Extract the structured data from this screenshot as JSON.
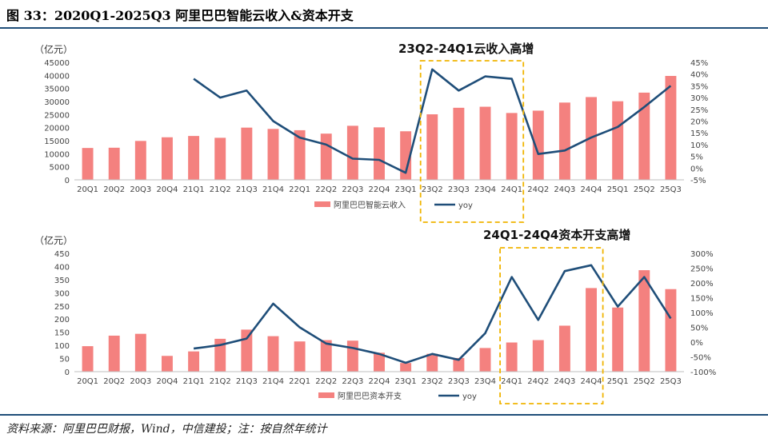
{
  "figure": {
    "title": "图 33：2020Q1-2025Q3 阿里巴巴智能云收入&资本开支",
    "source": "资料来源：阿里巴巴财报，Wind，中信建投；注：按自然年统计"
  },
  "colors": {
    "bar": "#f4817f",
    "line": "#1f4e79",
    "highlight": "#f0b400",
    "rule": "#1f4e79"
  },
  "chart_data": [
    {
      "type": "bar",
      "unit_label": "（亿元）",
      "annotation": "23Q2-24Q1云收入高增",
      "highlight_range": [
        "23Q2",
        "24Q1"
      ],
      "categories": [
        "20Q1",
        "20Q2",
        "20Q3",
        "20Q4",
        "21Q1",
        "21Q2",
        "21Q3",
        "21Q4",
        "22Q1",
        "22Q2",
        "22Q3",
        "22Q4",
        "23Q1",
        "23Q2",
        "23Q3",
        "23Q4",
        "24Q1",
        "24Q2",
        "24Q3",
        "24Q4",
        "25Q1",
        "25Q2",
        "25Q3"
      ],
      "ylim": [
        0,
        45000
      ],
      "yticks": [
        0,
        5000,
        10000,
        15000,
        20000,
        25000,
        30000,
        35000,
        40000,
        45000
      ],
      "ylim_right": [
        -5,
        45
      ],
      "yticks_right": [
        "-5%",
        "0%",
        "5%",
        "10%",
        "15%",
        "20%",
        "25%",
        "30%",
        "35%",
        "40%",
        "45%"
      ],
      "series": [
        {
          "name": "阿里巴巴智能云收入",
          "kind": "bar",
          "axis": "left",
          "values": [
            12200,
            12300,
            14900,
            16300,
            16800,
            16100,
            20000,
            19500,
            19000,
            17700,
            20700,
            20100,
            18600,
            25100,
            27600,
            28000,
            25600,
            26500,
            29600,
            31700,
            30100,
            33400,
            39800
          ]
        },
        {
          "name": "yoy",
          "kind": "line",
          "axis": "right",
          "values": [
            null,
            null,
            null,
            null,
            38,
            30,
            33,
            20,
            13,
            10,
            4,
            3.5,
            -2,
            42,
            33,
            39,
            38,
            6,
            7.5,
            13,
            17.5,
            26,
            35
          ]
        }
      ],
      "legend": {
        "position": "bottom"
      }
    },
    {
      "type": "bar",
      "unit_label": "（亿元）",
      "annotation": "24Q1-24Q4资本开支高增",
      "highlight_range": [
        "24Q1",
        "24Q4"
      ],
      "categories": [
        "20Q1",
        "20Q2",
        "20Q3",
        "20Q4",
        "21Q1",
        "21Q2",
        "21Q3",
        "21Q4",
        "22Q1",
        "22Q2",
        "22Q3",
        "22Q4",
        "23Q1",
        "23Q2",
        "23Q3",
        "23Q4",
        "24Q1",
        "24Q2",
        "24Q3",
        "24Q4",
        "25Q1",
        "25Q2",
        "25Q3"
      ],
      "ylim": [
        0,
        450
      ],
      "yticks": [
        0,
        50,
        100,
        150,
        200,
        250,
        300,
        350,
        400,
        450
      ],
      "ylim_right": [
        -100,
        300
      ],
      "yticks_right": [
        "-100%",
        "-50%",
        "0%",
        "50%",
        "100%",
        "150%",
        "200%",
        "250%",
        "300%"
      ],
      "series": [
        {
          "name": "阿里巴巴资本开支",
          "kind": "bar",
          "axis": "left",
          "values": [
            97,
            137,
            144,
            60,
            77,
            125,
            160,
            135,
            115,
            120,
            118,
            72,
            33,
            68,
            52,
            90,
            111,
            120,
            175,
            318,
            244,
            386,
            314
          ]
        },
        {
          "name": "yoy",
          "kind": "line",
          "axis": "right",
          "values": [
            null,
            null,
            null,
            null,
            -22,
            -10,
            12,
            130,
            50,
            -5,
            -20,
            -40,
            -70,
            -40,
            -60,
            30,
            220,
            75,
            240,
            260,
            120,
            220,
            80
          ]
        }
      ],
      "legend": {
        "position": "bottom"
      }
    }
  ]
}
